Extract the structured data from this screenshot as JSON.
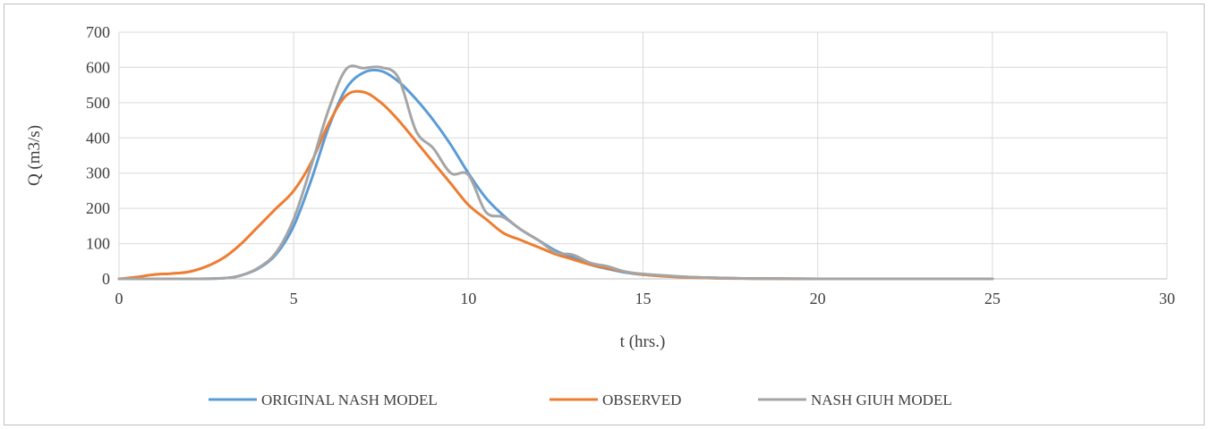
{
  "chart_data": {
    "type": "line",
    "title": "",
    "xlabel": "t (hrs.)",
    "ylabel": "Q (m3/s)",
    "xlim": [
      0,
      30
    ],
    "ylim": [
      0,
      700
    ],
    "xticks": [
      0,
      5,
      10,
      15,
      20,
      25,
      30
    ],
    "yticks": [
      0,
      100,
      200,
      300,
      400,
      500,
      600,
      700
    ],
    "grid": true,
    "legend_position": "bottom",
    "series": [
      {
        "name": "ORIGINAL NASH MODEL",
        "color": "#5B9BD5",
        "x": [
          0,
          1,
          2,
          3,
          3.5,
          4,
          4.5,
          5,
          5.5,
          6,
          6.5,
          7,
          7.5,
          8,
          8.5,
          9,
          9.5,
          10,
          10.5,
          11,
          11.5,
          12,
          12.5,
          13,
          13.5,
          14,
          14.5,
          15,
          16,
          17,
          18,
          19,
          20,
          22,
          25
        ],
        "y": [
          0,
          0,
          0,
          2,
          10,
          30,
          70,
          150,
          280,
          430,
          540,
          585,
          590,
          560,
          510,
          450,
          380,
          300,
          230,
          180,
          140,
          110,
          80,
          60,
          40,
          28,
          18,
          12,
          6,
          3,
          1,
          0.5,
          0,
          0,
          0
        ]
      },
      {
        "name": "OBSERVED",
        "color": "#ED7D31",
        "x": [
          0,
          0.5,
          1,
          1.5,
          2,
          2.5,
          3,
          3.5,
          4,
          4.5,
          5,
          5.5,
          6,
          6.5,
          7,
          7.5,
          8,
          8.5,
          9,
          9.5,
          10,
          10.5,
          11,
          11.5,
          12,
          12.5,
          13,
          13.5,
          14,
          14.5,
          15,
          16,
          17,
          18,
          20,
          25
        ],
        "y": [
          0,
          5,
          12,
          15,
          20,
          35,
          60,
          100,
          150,
          200,
          250,
          330,
          440,
          520,
          530,
          500,
          450,
          390,
          330,
          270,
          210,
          170,
          130,
          110,
          90,
          70,
          55,
          40,
          30,
          20,
          12,
          5,
          2,
          1,
          0,
          0
        ]
      },
      {
        "name": "NASH GIUH MODEL",
        "color": "#A5A5A5",
        "x": [
          0,
          1,
          2,
          3,
          3.5,
          4,
          4.5,
          5,
          5.5,
          6,
          6.5,
          7,
          7.5,
          8,
          8.5,
          9,
          9.5,
          10,
          10.5,
          11,
          11.5,
          12,
          12.5,
          13,
          13.5,
          14,
          14.5,
          15,
          16,
          17,
          18,
          19,
          20,
          22,
          25
        ],
        "y": [
          0,
          0,
          0,
          2,
          10,
          32,
          75,
          170,
          320,
          480,
          595,
          598,
          600,
          570,
          420,
          370,
          300,
          295,
          190,
          175,
          140,
          110,
          75,
          68,
          45,
          35,
          20,
          14,
          7,
          3,
          1,
          0.5,
          0,
          0,
          0
        ]
      }
    ]
  }
}
